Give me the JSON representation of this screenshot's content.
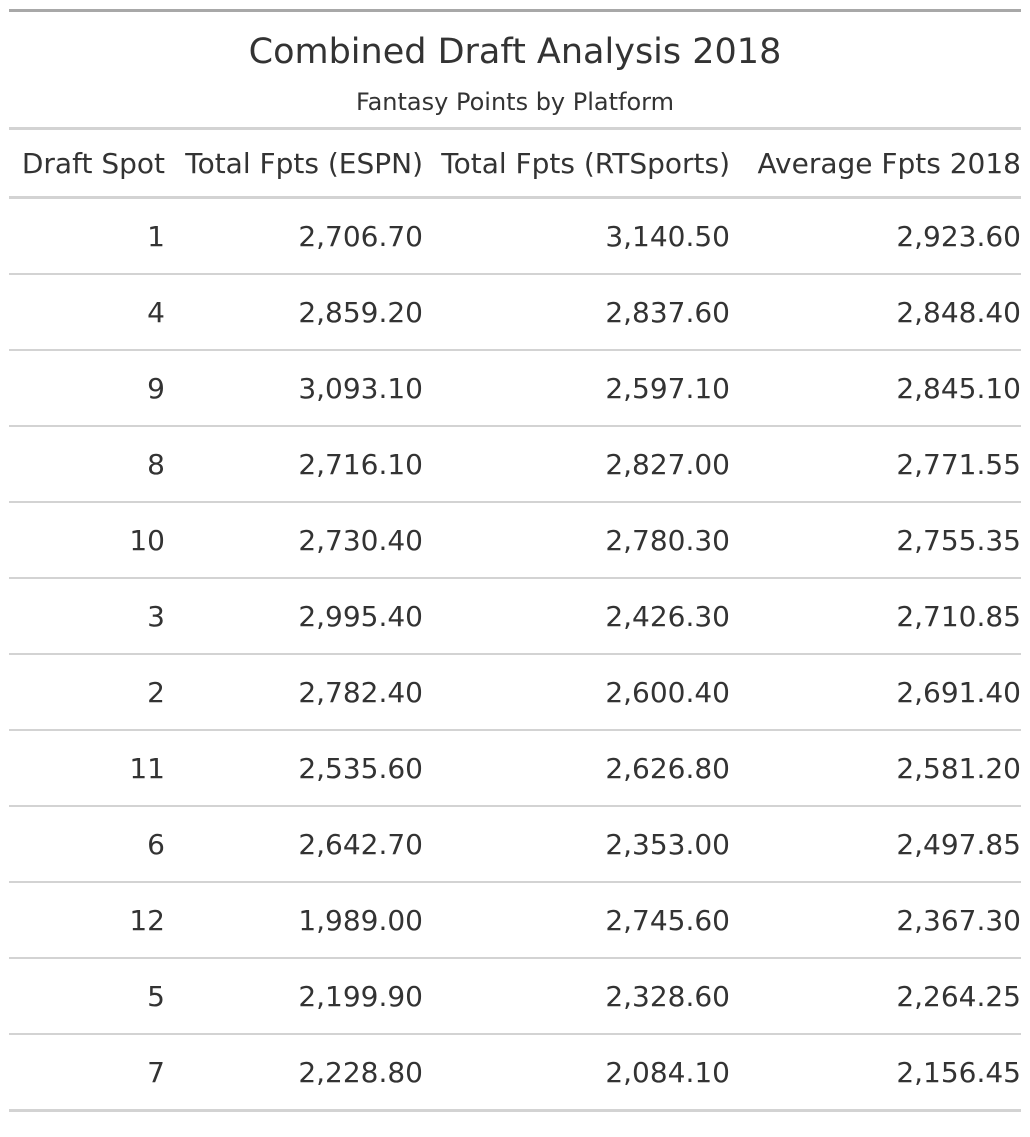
{
  "title": "Combined Draft Analysis 2018",
  "subtitle": "Fantasy Points by Platform",
  "columns": [
    "Draft Spot",
    "Total Fpts (ESPN)",
    "Total Fpts (RTSports)",
    "Average Fpts 2018"
  ],
  "rows": [
    [
      "1",
      "2,706.70",
      "3,140.50",
      "2,923.60"
    ],
    [
      "4",
      "2,859.20",
      "2,837.60",
      "2,848.40"
    ],
    [
      "9",
      "3,093.10",
      "2,597.10",
      "2,845.10"
    ],
    [
      "8",
      "2,716.10",
      "2,827.00",
      "2,771.55"
    ],
    [
      "10",
      "2,730.40",
      "2,780.30",
      "2,755.35"
    ],
    [
      "3",
      "2,995.40",
      "2,426.30",
      "2,710.85"
    ],
    [
      "2",
      "2,782.40",
      "2,600.40",
      "2,691.40"
    ],
    [
      "11",
      "2,535.60",
      "2,626.80",
      "2,581.20"
    ],
    [
      "6",
      "2,642.70",
      "2,353.00",
      "2,497.85"
    ],
    [
      "12",
      "1,989.00",
      "2,745.60",
      "2,367.30"
    ],
    [
      "5",
      "2,199.90",
      "2,328.60",
      "2,264.25"
    ],
    [
      "7",
      "2,228.80",
      "2,084.10",
      "2,156.45"
    ]
  ]
}
